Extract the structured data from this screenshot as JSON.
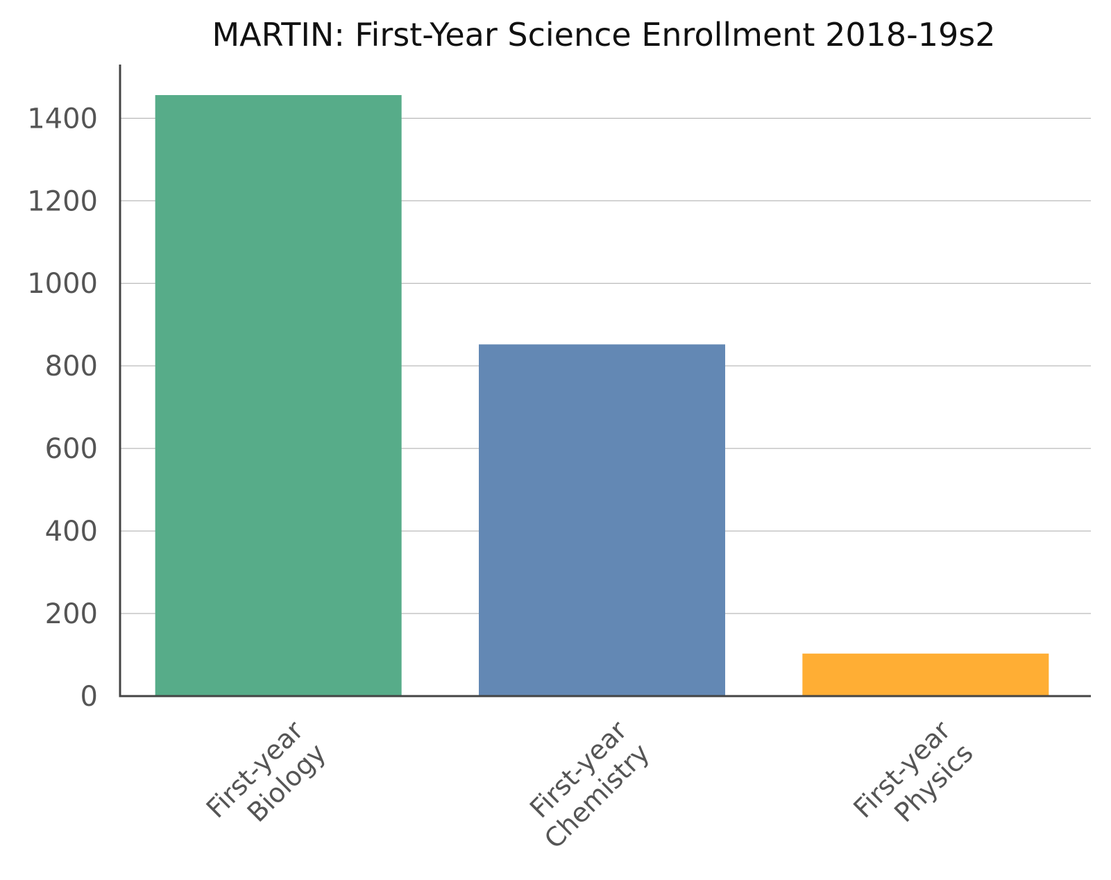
{
  "chart_data": {
    "type": "bar",
    "title": "MARTIN: First-Year Science Enrollment 2018-19s2",
    "xlabel": "",
    "ylabel": "",
    "categories": [
      [
        "First-year",
        "Biology"
      ],
      [
        "First-year",
        "Chemistry"
      ],
      [
        "First-year",
        "Physics"
      ]
    ],
    "values": [
      1456,
      852,
      103
    ],
    "colors": [
      "#57ac89",
      "#6388b4",
      "#ffae34"
    ],
    "ylim": [
      0,
      1530
    ],
    "yticks": [
      0,
      200,
      400,
      600,
      800,
      1000,
      1200,
      1400
    ],
    "grid": true,
    "legend": "none"
  }
}
